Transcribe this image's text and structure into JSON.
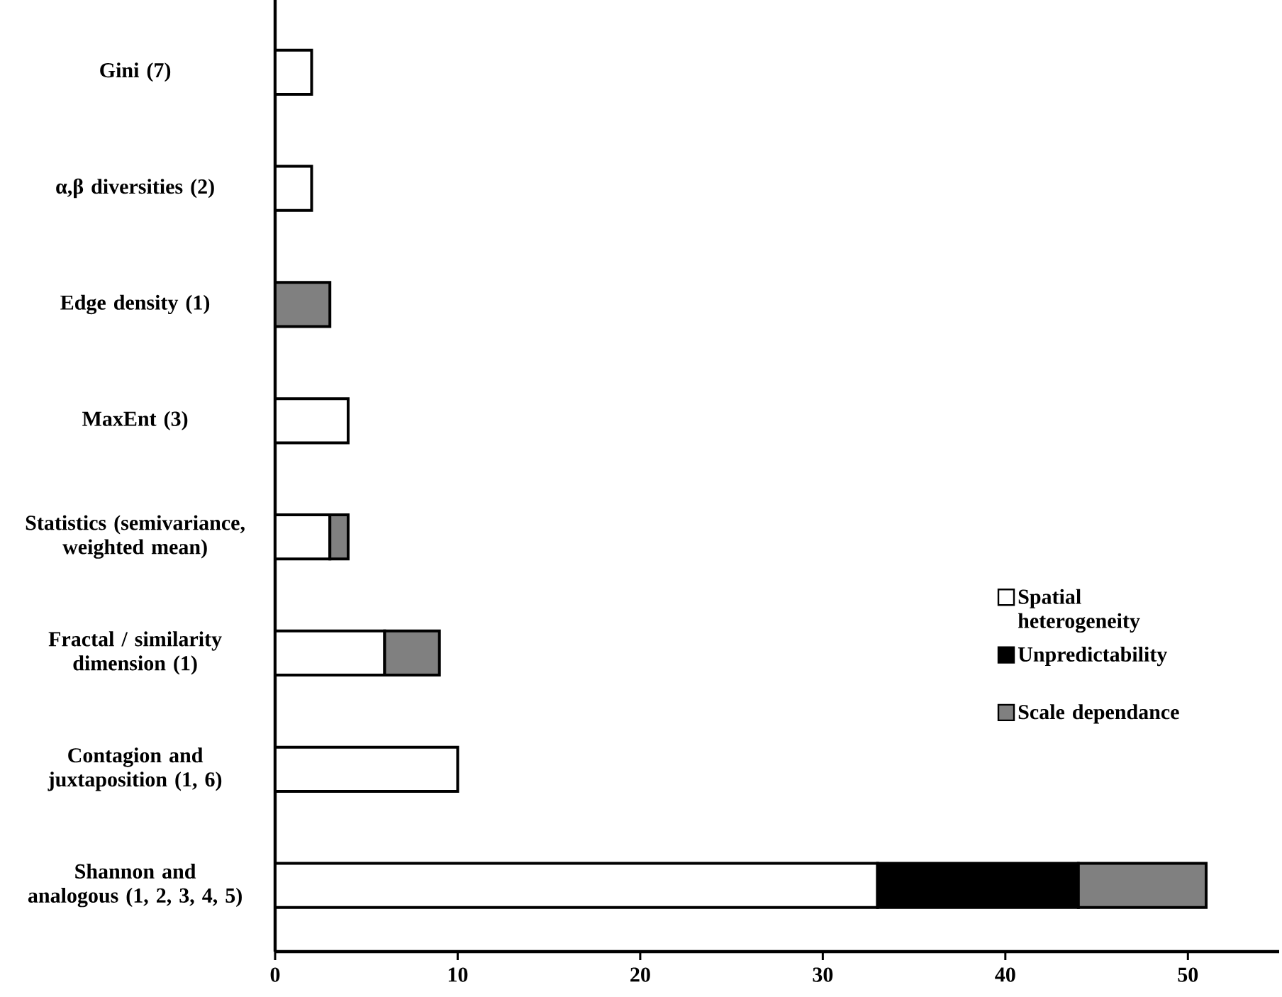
{
  "chart_data": {
    "type": "bar",
    "orientation": "horizontal",
    "stacked": true,
    "categories": [
      "Gini (7)",
      "α,β diversities (2)",
      "Edge density (1)",
      "MaxEnt (3)",
      "Statistics (semivariance, weighted mean)",
      "Fractal / similarity dimension (1)",
      "Contagion and juxtaposition (1, 6)",
      "Shannon and analogous (1, 2, 3, 4, 5)"
    ],
    "series": [
      {
        "name": "Spatial heterogeneity",
        "color": "#ffffff",
        "values": [
          2,
          2,
          null,
          4,
          3,
          6,
          10,
          33
        ]
      },
      {
        "name": "Unpredictability",
        "color": "#000000",
        "values": [
          null,
          null,
          null,
          null,
          null,
          null,
          null,
          11
        ]
      },
      {
        "name": "Scale dependance",
        "color": "#808080",
        "values": [
          null,
          null,
          3,
          null,
          1,
          3,
          null,
          7
        ]
      }
    ],
    "xlim": [
      0,
      55
    ],
    "xticks": [
      0,
      10,
      20,
      30,
      40,
      50
    ],
    "legend": "right",
    "grid": false
  }
}
